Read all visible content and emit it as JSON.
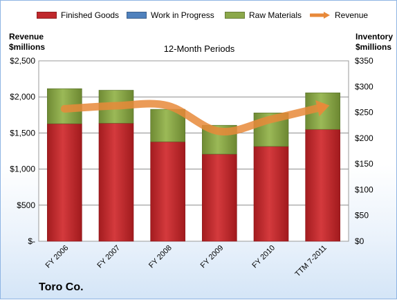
{
  "chart_data": {
    "type": "bar",
    "subtype": "stacked bar with line overlay (dual axis)",
    "title": "12-Month Periods",
    "company": "Toro Co.",
    "categories": [
      "FY 2006",
      "FY 2007",
      "FY 2008",
      "FY 2009",
      "FY 2010",
      "TTM 7-2011"
    ],
    "left_axis": {
      "label_line1": "Revenue",
      "label_line2": "$millions",
      "ylim": [
        0,
        2500
      ],
      "ticks": [
        "$2,500",
        "$2,000",
        "$1,500",
        "$1,000",
        "$500",
        "$-"
      ]
    },
    "right_axis": {
      "label_line1": "Inventory",
      "label_line2": "$millions",
      "ylim": [
        0,
        350
      ],
      "ticks": [
        "$350",
        "$300",
        "$250",
        "$200",
        "$150",
        "$100",
        "$50",
        "$0"
      ]
    },
    "series": [
      {
        "name": "Finished Goods",
        "axis": "right",
        "kind": "bar",
        "color": "#c0282c",
        "values": [
          228,
          229,
          193,
          169,
          184,
          217
        ]
      },
      {
        "name": "Work in Progress",
        "axis": "right",
        "kind": "bar",
        "color": "#4f81bd",
        "values": [
          0,
          0,
          0,
          0,
          0,
          0
        ]
      },
      {
        "name": "Raw Materials",
        "axis": "right",
        "kind": "bar",
        "color": "#8ba84a",
        "values": [
          68,
          64,
          63,
          56,
          65,
          71
        ]
      },
      {
        "name": "Revenue",
        "axis": "left",
        "kind": "line",
        "color": "#e8893a",
        "values": [
          1835,
          1877,
          1878,
          1523,
          1690,
          1860
        ]
      }
    ],
    "grid": true,
    "legend_position": "top"
  }
}
